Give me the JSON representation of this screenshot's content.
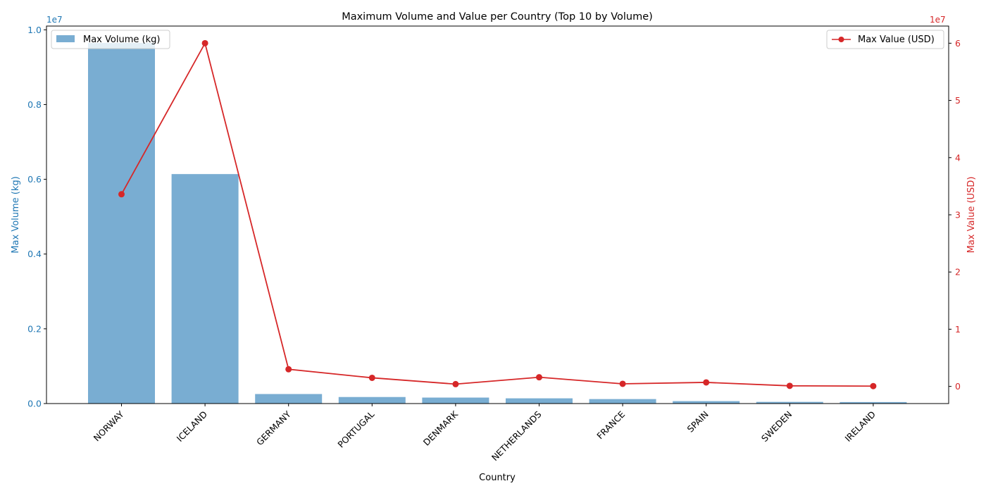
{
  "chart_data": {
    "type": "bar",
    "title": "Maximum Volume and Value per Country (Top 10 by Volume)",
    "xlabel": "Country",
    "categories": [
      "NORWAY",
      "ICELAND",
      "GERMANY",
      "PORTUGAL",
      "DENMARK",
      "NETHERLANDS",
      "FRANCE",
      "SPAIN",
      "SWEDEN",
      "IRELAND"
    ],
    "grid": false,
    "bar_series": {
      "name": "Max Volume (kg)",
      "axis": "left",
      "color": "#1f77b4",
      "values": [
        9650000,
        6140000,
        255000,
        175000,
        160000,
        140000,
        120000,
        65000,
        45000,
        40000
      ]
    },
    "line_series": {
      "name": "Max Value (USD)",
      "axis": "right",
      "color": "#d62728",
      "values": [
        33600000,
        60000000,
        3000000,
        1500000,
        400000,
        1600000,
        450000,
        700000,
        100000,
        50000
      ]
    },
    "left_axis": {
      "label": "Max Volume (kg)",
      "multiplier": "1e7",
      "ylim": [
        0,
        1.01
      ],
      "ticks": [
        "0.0",
        "0.2",
        "0.4",
        "0.6",
        "0.8",
        "1.0"
      ],
      "color": "#1f77b4"
    },
    "right_axis": {
      "label": "Max Value (USD)",
      "multiplier": "1e7",
      "ylim": [
        -0.3,
        6.3
      ],
      "ticks": [
        "0",
        "1",
        "2",
        "3",
        "4",
        "5",
        "6"
      ],
      "color": "#d62728"
    },
    "legends": {
      "bar": {
        "label": "Max Volume (kg)",
        "placement": "upper-left"
      },
      "line": {
        "label": "Max Value (USD)",
        "placement": "upper-right"
      }
    }
  }
}
